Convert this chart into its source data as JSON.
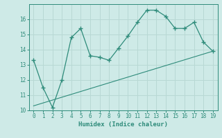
{
  "x": [
    0,
    1,
    2,
    3,
    4,
    5,
    6,
    7,
    8,
    9,
    10,
    11,
    12,
    13,
    14,
    15,
    16,
    17,
    18,
    19
  ],
  "y": [
    13.3,
    11.5,
    10.2,
    12.0,
    14.8,
    15.4,
    13.6,
    13.5,
    13.3,
    14.1,
    14.9,
    15.8,
    16.6,
    16.6,
    16.2,
    15.4,
    15.4,
    15.8,
    14.5,
    13.9
  ],
  "line_color": "#2e8b7a",
  "bg_color": "#ceeae7",
  "grid_color": "#b8d8d4",
  "xlabel": "Humidex (Indice chaleur)",
  "ylim": [
    10,
    17
  ],
  "xlim": [
    -0.5,
    19.5
  ],
  "yticks": [
    10,
    11,
    12,
    13,
    14,
    15,
    16
  ],
  "xticks": [
    0,
    1,
    2,
    3,
    4,
    5,
    6,
    7,
    8,
    9,
    10,
    11,
    12,
    13,
    14,
    15,
    16,
    17,
    18,
    19
  ],
  "trend_x": [
    0,
    19
  ],
  "trend_y": [
    10.3,
    13.9
  ]
}
